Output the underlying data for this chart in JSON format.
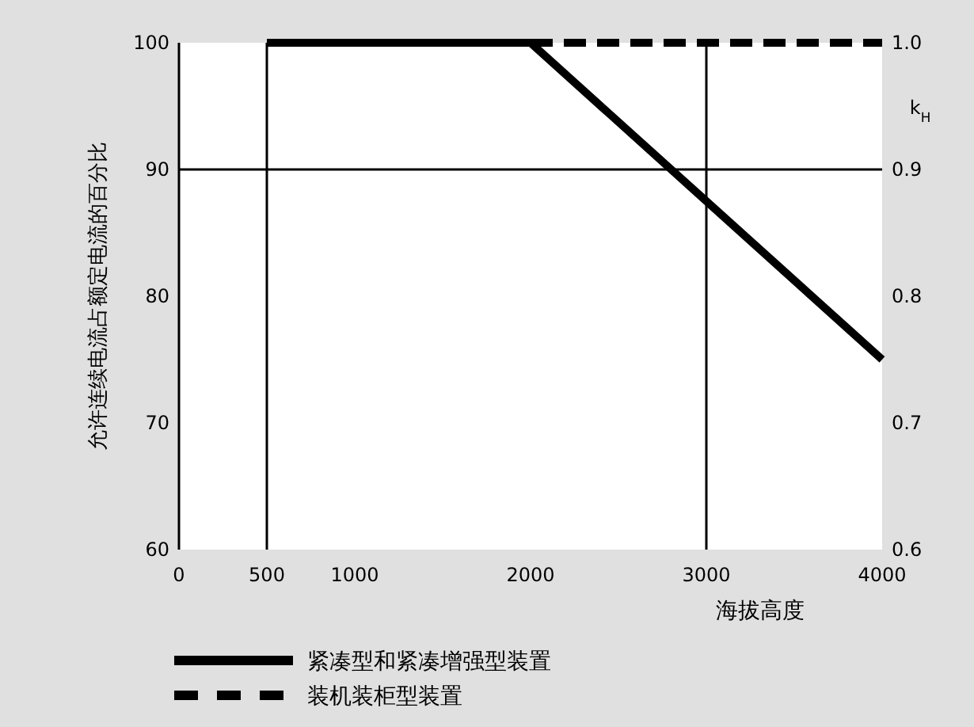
{
  "chart_data": {
    "type": "line",
    "ylabel": "允许连续电流占额定电流的百分比",
    "xlabel": "海拔高度",
    "y2label": "k$_{H}$",
    "xlim": [
      0,
      4000
    ],
    "xticks": [
      0,
      500,
      1000,
      2000,
      3000,
      4000
    ],
    "ylim": [
      60,
      100
    ],
    "yticks": [
      60,
      70,
      80,
      90,
      100
    ],
    "y2lim": [
      0.6,
      1.0
    ],
    "y2ticks": [
      {
        "value": 0.6,
        "label": "0.6"
      },
      {
        "value": 0.7,
        "label": "0.7"
      },
      {
        "value": 0.8,
        "label": "0.8"
      },
      {
        "value": 0.9,
        "label": "0.9"
      },
      {
        "value": 1.0,
        "label": "1.0"
      }
    ],
    "series": [
      {
        "name": "紧凑型和紧凑增强型装置",
        "color": "#000000",
        "line_style": "solid",
        "x": [
          500,
          2000,
          4000
        ],
        "values": [
          100,
          100,
          75
        ]
      },
      {
        "name": "装机装柜型装置",
        "color": "#000000",
        "line_style": "dashed",
        "x": [
          2000,
          4000
        ],
        "values": [
          100,
          100
        ]
      }
    ],
    "ref_lines": [
      {
        "axis": "x",
        "value": 500,
        "color": "#000000"
      },
      {
        "axis": "x",
        "value": 3000,
        "color": "#000000"
      },
      {
        "axis": "y",
        "value": 90,
        "color": "#000000"
      }
    ],
    "grid": false,
    "legend": "bottom left"
  }
}
